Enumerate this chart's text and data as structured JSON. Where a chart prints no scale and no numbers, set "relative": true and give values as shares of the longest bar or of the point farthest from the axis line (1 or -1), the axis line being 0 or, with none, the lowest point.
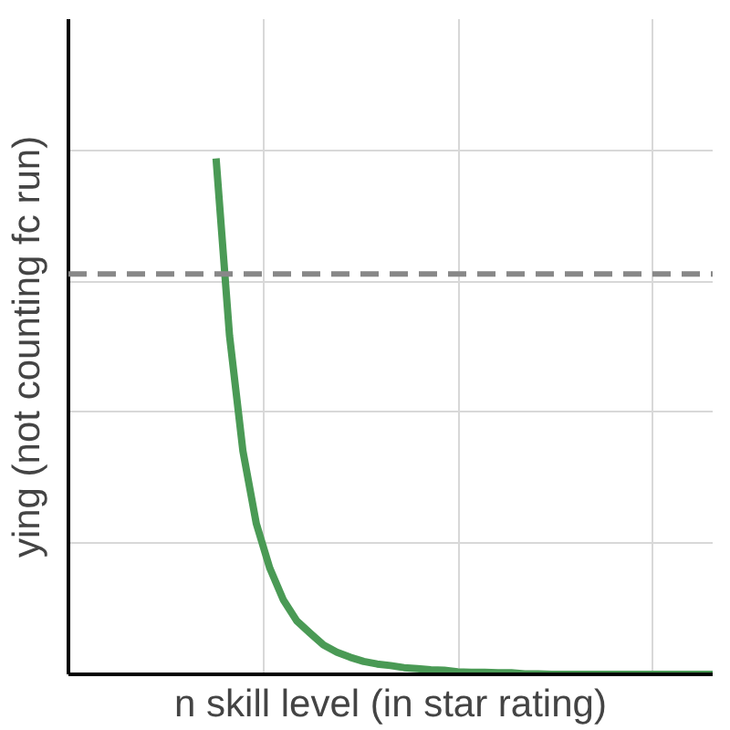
{
  "chart_data": {
    "type": "line",
    "relative": true,
    "xlabel": "n skill level (in star rating)",
    "ylabel": "ying (not counting fc run)",
    "categories": [
      null,
      null,
      null,
      null,
      null,
      null,
      null,
      null,
      null,
      null,
      null,
      null,
      null,
      null,
      null,
      null,
      null,
      null,
      null,
      null,
      null,
      null,
      null,
      null,
      null,
      null,
      null,
      null,
      null,
      null,
      null,
      null,
      null,
      null,
      null,
      null,
      null,
      null,
      null,
      null,
      null,
      null,
      null,
      null,
      null,
      null,
      null,
      null,
      null
    ],
    "series": [
      {
        "color": "#4a9a55",
        "values": [
          null,
          null,
          null,
          null,
          null,
          null,
          null,
          null,
          null,
          null,
          null,
          1,
          0.657,
          0.433,
          0.292,
          0.206,
          0.145,
          0.104,
          0.08,
          0.057,
          0.043,
          0.033,
          0.025,
          0.02,
          0.017,
          0.013,
          0.011,
          0.009,
          0.008,
          0.005,
          0.004,
          0.004,
          0.003,
          0.003,
          0.001,
          0.001,
          0,
          0,
          0,
          0,
          0,
          0,
          0,
          0,
          0,
          0,
          0,
          0,
          0
        ]
      }
    ],
    "ref_lines": [
      {
        "axis": "y",
        "value": 0.776,
        "color": "#888888",
        "line_style": "dashed"
      }
    ],
    "grid": true,
    "line_style": "solid"
  }
}
